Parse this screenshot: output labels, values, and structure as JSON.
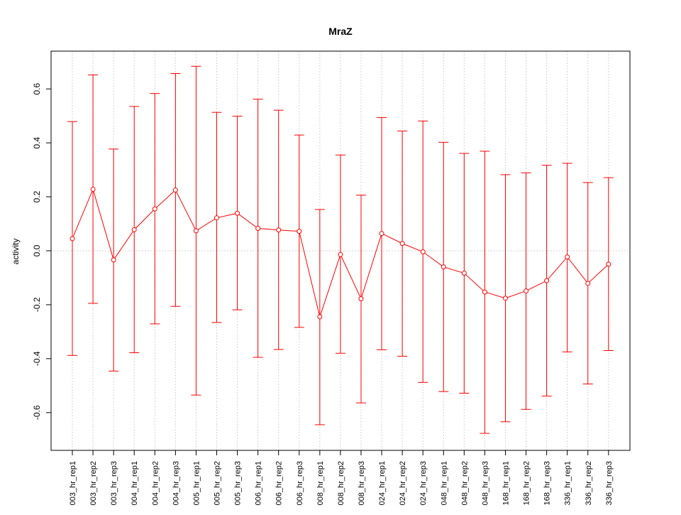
{
  "chart_data": {
    "type": "line",
    "title": "MraZ",
    "xlabel": "",
    "ylabel": "activity",
    "ylim": [
      -0.74,
      0.74
    ],
    "yticks": [
      -0.6,
      -0.4,
      -0.2,
      0.0,
      0.2,
      0.4,
      0.6
    ],
    "ytick_labels": [
      "-0.6",
      "-0.4",
      "-0.2",
      "0.0",
      "0.2",
      "0.4",
      "0.6"
    ],
    "grid": true,
    "error_bars": true,
    "colors": {
      "series": "#ff0000",
      "grid": "#d3d3d3",
      "axis": "#000000"
    },
    "categories": [
      "003_hr_rep1",
      "003_hr_rep2",
      "003_hr_rep3",
      "004_hr_rep1",
      "004_hr_rep2",
      "004_hr_rep3",
      "005_hr_rep1",
      "005_hr_rep2",
      "005_hr_rep3",
      "006_hr_rep1",
      "006_hr_rep2",
      "006_hr_rep3",
      "008_hr_rep1",
      "008_hr_rep2",
      "008_hr_rep3",
      "024_hr_rep1",
      "024_hr_rep2",
      "024_hr_rep3",
      "048_hr_rep1",
      "048_hr_rep2",
      "048_hr_rep3",
      "168_hr_rep1",
      "168_hr_rep2",
      "168_hr_rep3",
      "336_hr_rep1",
      "336_hr_rep2",
      "336_hr_rep3"
    ],
    "values": [
      0.045,
      0.228,
      -0.034,
      0.078,
      0.155,
      0.225,
      0.074,
      0.122,
      0.139,
      0.083,
      0.077,
      0.072,
      -0.245,
      -0.014,
      -0.178,
      0.064,
      0.027,
      -0.004,
      -0.06,
      -0.083,
      -0.153,
      -0.176,
      -0.149,
      -0.111,
      -0.023,
      -0.121,
      -0.05
    ],
    "upper": [
      0.479,
      0.652,
      0.377,
      0.535,
      0.583,
      0.657,
      0.684,
      0.513,
      0.499,
      0.562,
      0.521,
      0.429,
      0.153,
      0.355,
      0.206,
      0.494,
      0.444,
      0.481,
      0.402,
      0.361,
      0.369,
      0.282,
      0.289,
      0.317,
      0.324,
      0.253,
      0.271
    ],
    "lower": [
      -0.388,
      -0.195,
      -0.446,
      -0.378,
      -0.271,
      -0.206,
      -0.535,
      -0.266,
      -0.219,
      -0.395,
      -0.366,
      -0.284,
      -0.645,
      -0.38,
      -0.564,
      -0.367,
      -0.391,
      -0.488,
      -0.522,
      -0.528,
      -0.677,
      -0.634,
      -0.588,
      -0.539,
      -0.375,
      -0.494,
      -0.37
    ]
  }
}
